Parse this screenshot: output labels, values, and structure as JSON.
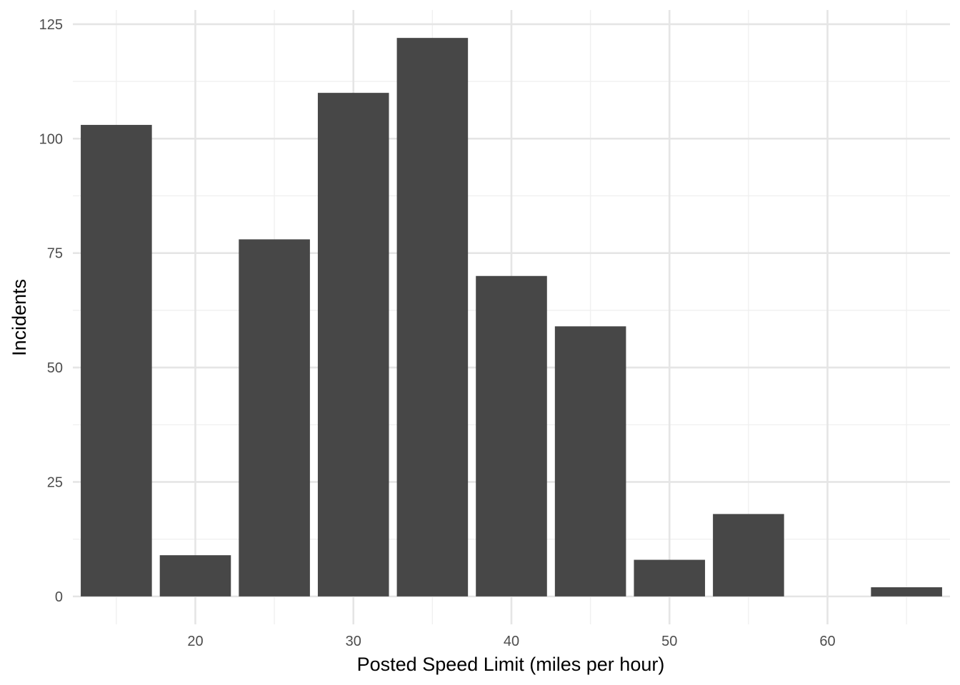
{
  "chart_data": {
    "type": "bar",
    "title": "",
    "xlabel": "Posted Speed Limit (miles per hour)",
    "ylabel": "Incidents",
    "x": [
      15,
      20,
      25,
      30,
      35,
      40,
      45,
      50,
      55,
      60,
      65
    ],
    "values": [
      103,
      9,
      78,
      110,
      122,
      70,
      59,
      8,
      18,
      0,
      2
    ],
    "xlim": [
      12.25,
      67.75
    ],
    "ylim": [
      -6.1,
      128.1
    ],
    "x_ticks": [
      20,
      30,
      40,
      50,
      60
    ],
    "x_tick_labels": [
      "20",
      "30",
      "40",
      "50",
      "60"
    ],
    "y_ticks": [
      0,
      25,
      50,
      75,
      100,
      125
    ],
    "y_tick_labels": [
      "0",
      "25",
      "50",
      "75",
      "100",
      "125"
    ],
    "bar_width": 4.5,
    "grid": true,
    "legend": "none",
    "colors": {
      "bar": "#474747",
      "grid_major": "#e5e5e5",
      "grid_minor": "#f0f0f0",
      "background": "#ffffff"
    }
  }
}
